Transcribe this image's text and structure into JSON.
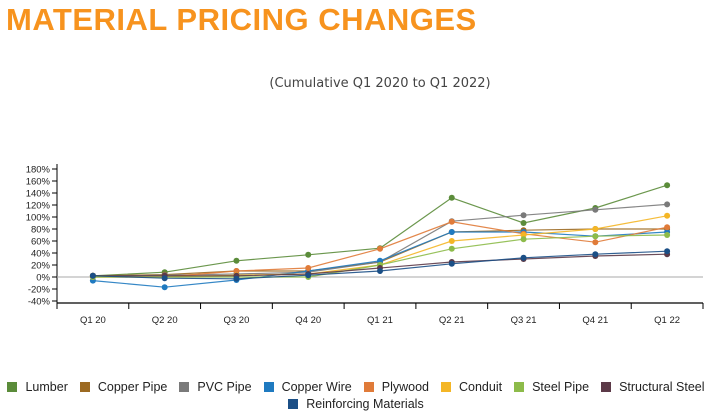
{
  "chart_data": {
    "type": "line",
    "title": "MATERIAL PRICING CHANGES",
    "subtitle": "(Cumulative Q1 2020 to Q1 2022)",
    "xlabel": "",
    "ylabel": "",
    "categories": [
      "Q1 20",
      "Q2 20",
      "Q3 20",
      "Q4 20",
      "Q1 21",
      "Q2 21",
      "Q3 21",
      "Q4 21",
      "Q1 22"
    ],
    "ylim": [
      -40,
      180
    ],
    "yticks": [
      -40,
      -20,
      0,
      20,
      40,
      60,
      80,
      100,
      120,
      140,
      160,
      180
    ],
    "ytick_labels": [
      "-40%",
      "-20%",
      "0%",
      "20%",
      "40%",
      "60%",
      "80%",
      "100%",
      "120%",
      "140%",
      "160%",
      "180%"
    ],
    "grid": false,
    "legend_position": "bottom",
    "series": [
      {
        "name": "Lumber",
        "color": "#5b8c3a",
        "values": [
          2,
          8,
          27,
          37,
          48,
          132,
          90,
          115,
          153
        ]
      },
      {
        "name": "Copper Pipe",
        "color": "#9c6a22",
        "values": [
          2,
          4,
          10,
          10,
          25,
          75,
          78,
          80,
          80
        ]
      },
      {
        "name": "PVC Pipe",
        "color": "#7a7a7a",
        "values": [
          1,
          3,
          5,
          8,
          25,
          93,
          103,
          112,
          121
        ]
      },
      {
        "name": "Copper Wire",
        "color": "#1f7ac0",
        "values": [
          -6,
          -17,
          -5,
          10,
          27,
          75,
          75,
          68,
          75
        ]
      },
      {
        "name": "Plywood",
        "color": "#e07b39",
        "values": [
          0,
          0,
          10,
          15,
          47,
          92,
          72,
          58,
          83
        ]
      },
      {
        "name": "Conduit",
        "color": "#f4b626",
        "values": [
          0,
          0,
          3,
          5,
          20,
          60,
          70,
          80,
          102
        ]
      },
      {
        "name": "Steel Pipe",
        "color": "#8dbb4a",
        "values": [
          0,
          0,
          0,
          0,
          20,
          47,
          63,
          68,
          70
        ]
      },
      {
        "name": "Structural Steel",
        "color": "#5c3a48",
        "values": [
          2,
          2,
          2,
          5,
          15,
          25,
          30,
          35,
          38
        ]
      },
      {
        "name": "Reinforcing Materials",
        "color": "#1b4f86",
        "values": [
          2,
          -2,
          -3,
          3,
          10,
          22,
          32,
          38,
          43
        ]
      }
    ]
  }
}
